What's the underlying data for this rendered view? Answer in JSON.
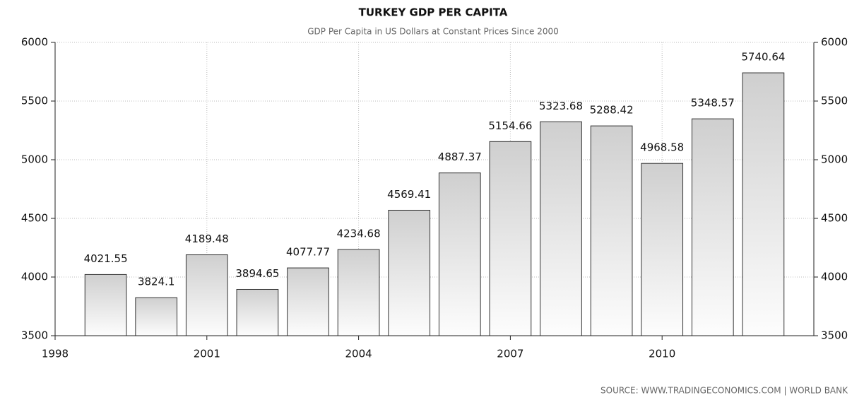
{
  "chart_data": {
    "type": "bar",
    "title": "TURKEY GDP PER CAPITA",
    "subtitle": "GDP Per Capita in US Dollars at Constant Prices Since 2000",
    "source": "SOURCE:  WWW.TRADINGECONOMICS.COM  |  WORLD BANK",
    "x": [
      1999,
      2000,
      2001,
      2002,
      2003,
      2004,
      2005,
      2006,
      2007,
      2008,
      2009,
      2010,
      2011,
      2012
    ],
    "values": [
      4021.55,
      3824.1,
      4189.48,
      3894.65,
      4077.77,
      4234.68,
      4569.41,
      4887.37,
      5154.66,
      5323.68,
      5288.42,
      4968.58,
      5348.57,
      5740.64
    ],
    "xlim": [
      1998,
      2013
    ],
    "xticks": [
      1998,
      2001,
      2004,
      2007,
      2010
    ],
    "ylim": [
      3500,
      6000
    ],
    "yticks": [
      3500,
      4000,
      4500,
      5000,
      5500,
      6000
    ],
    "grid": true
  }
}
